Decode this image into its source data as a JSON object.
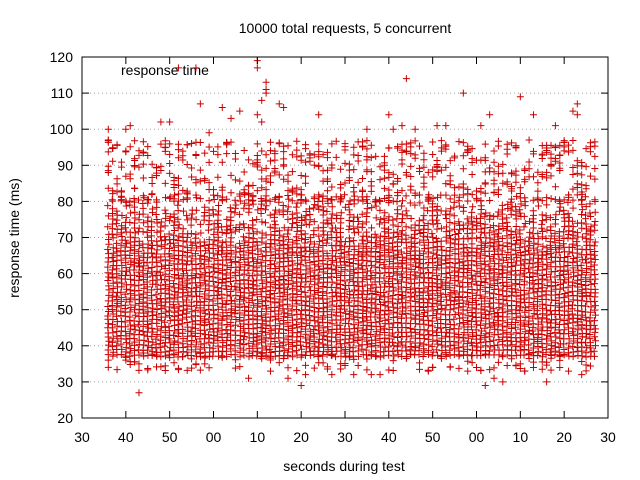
{
  "chart_data": {
    "type": "scatter",
    "title": "10000 total requests, 5 concurrent",
    "xlabel": "seconds during test",
    "ylabel": "response time (ms)",
    "xlim": [
      0,
      120
    ],
    "ylim": [
      20,
      120
    ],
    "grid": {
      "x": false,
      "y": true
    },
    "legend_position": "top-left",
    "x_tick_labels": [
      "30",
      "40",
      "50",
      "00",
      "10",
      "20",
      "30",
      "40",
      "50",
      "00",
      "10",
      "20",
      "30"
    ],
    "y_ticks": [
      20,
      30,
      40,
      50,
      60,
      70,
      80,
      90,
      100,
      110,
      120
    ],
    "series": [
      {
        "name": "response time",
        "color": "#cc0000",
        "marker": "plus",
        "x_range": [
          6,
          117
        ],
        "dense_band": [
          38,
          80
        ],
        "outliers": [
          {
            "x": 6,
            "y": 100
          },
          {
            "x": 6,
            "y": 97
          },
          {
            "x": 6,
            "y": 88
          },
          {
            "x": 11,
            "y": 101
          },
          {
            "x": 10,
            "y": 100
          },
          {
            "x": 13,
            "y": 35
          },
          {
            "x": 13,
            "y": 27
          },
          {
            "x": 18,
            "y": 102
          },
          {
            "x": 20,
            "y": 102
          },
          {
            "x": 22,
            "y": 117
          },
          {
            "x": 23,
            "y": 37
          },
          {
            "x": 27,
            "y": 107
          },
          {
            "x": 28,
            "y": 35
          },
          {
            "x": 29,
            "y": 99
          },
          {
            "x": 32,
            "y": 106
          },
          {
            "x": 34,
            "y": 103
          },
          {
            "x": 36,
            "y": 105
          },
          {
            "x": 38,
            "y": 31
          },
          {
            "x": 40,
            "y": 119
          },
          {
            "x": 40,
            "y": 117
          },
          {
            "x": 40,
            "y": 104
          },
          {
            "x": 41,
            "y": 102
          },
          {
            "x": 41,
            "y": 108
          },
          {
            "x": 42,
            "y": 110
          },
          {
            "x": 42,
            "y": 113
          },
          {
            "x": 42,
            "y": 111
          },
          {
            "x": 43,
            "y": 33
          },
          {
            "x": 45,
            "y": 107
          },
          {
            "x": 46,
            "y": 106
          },
          {
            "x": 47,
            "y": 31
          },
          {
            "x": 50,
            "y": 29
          },
          {
            "x": 51,
            "y": 32
          },
          {
            "x": 54,
            "y": 104
          },
          {
            "x": 57,
            "y": 32
          },
          {
            "x": 60,
            "y": 96
          },
          {
            "x": 62,
            "y": 32
          },
          {
            "x": 65,
            "y": 100
          },
          {
            "x": 66,
            "y": 32
          },
          {
            "x": 68,
            "y": 32
          },
          {
            "x": 70,
            "y": 104
          },
          {
            "x": 71,
            "y": 100
          },
          {
            "x": 73,
            "y": 101
          },
          {
            "x": 74,
            "y": 114
          },
          {
            "x": 76,
            "y": 100
          },
          {
            "x": 79,
            "y": 33
          },
          {
            "x": 80,
            "y": 34
          },
          {
            "x": 81,
            "y": 101
          },
          {
            "x": 83,
            "y": 101
          },
          {
            "x": 87,
            "y": 110
          },
          {
            "x": 88,
            "y": 33
          },
          {
            "x": 91,
            "y": 101
          },
          {
            "x": 92,
            "y": 29
          },
          {
            "x": 93,
            "y": 104
          },
          {
            "x": 94,
            "y": 31
          },
          {
            "x": 96,
            "y": 30
          },
          {
            "x": 100,
            "y": 109
          },
          {
            "x": 101,
            "y": 33
          },
          {
            "x": 102,
            "y": 97
          },
          {
            "x": 103,
            "y": 104
          },
          {
            "x": 106,
            "y": 30
          },
          {
            "x": 108,
            "y": 101
          },
          {
            "x": 109,
            "y": 34
          },
          {
            "x": 111,
            "y": 33
          },
          {
            "x": 112,
            "y": 105
          },
          {
            "x": 113,
            "y": 107
          },
          {
            "x": 113,
            "y": 104
          },
          {
            "x": 114,
            "y": 32
          },
          {
            "x": 116,
            "y": 72
          },
          {
            "x": 116,
            "y": 40
          }
        ]
      }
    ]
  }
}
